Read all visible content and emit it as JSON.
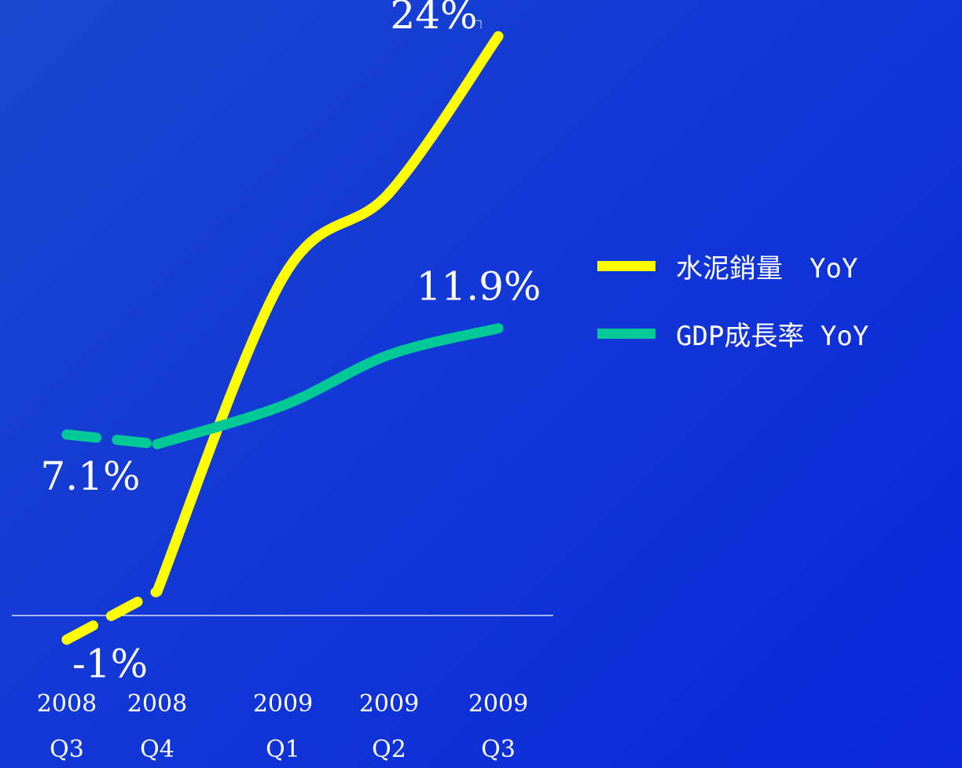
{
  "chart_data": {
    "type": "line",
    "categories": [
      "2008 Q3",
      "2008 Q4",
      "2009 Q1",
      "2009 Q2",
      "2009 Q3"
    ],
    "tick_labels": [
      {
        "year": "2008",
        "quarter": "Q3"
      },
      {
        "year": "2008",
        "quarter": "Q4"
      },
      {
        "year": "2009",
        "quarter": "Q1"
      },
      {
        "year": "2009",
        "quarter": "Q2"
      },
      {
        "year": "2009",
        "quarter": "Q3"
      }
    ],
    "series": [
      {
        "name": "水泥銷量　YoY",
        "color": "#ffff00",
        "values": [
          -1,
          1,
          14,
          17.5,
          24
        ],
        "labels": [
          {
            "index": 0,
            "text": "-1%"
          },
          {
            "index": 4,
            "text": "24%"
          }
        ]
      },
      {
        "name": "GDP成長率 YoY",
        "color": "#00c896",
        "values": [
          7.5,
          7.1,
          8.7,
          10.8,
          11.9
        ],
        "labels": [
          {
            "index": 1,
            "text": "7.1%"
          },
          {
            "index": 4,
            "text": "11.9%"
          }
        ]
      }
    ],
    "baseline": 0,
    "ylim": [
      -2,
      25
    ],
    "grid": false,
    "legend_position": "right"
  }
}
